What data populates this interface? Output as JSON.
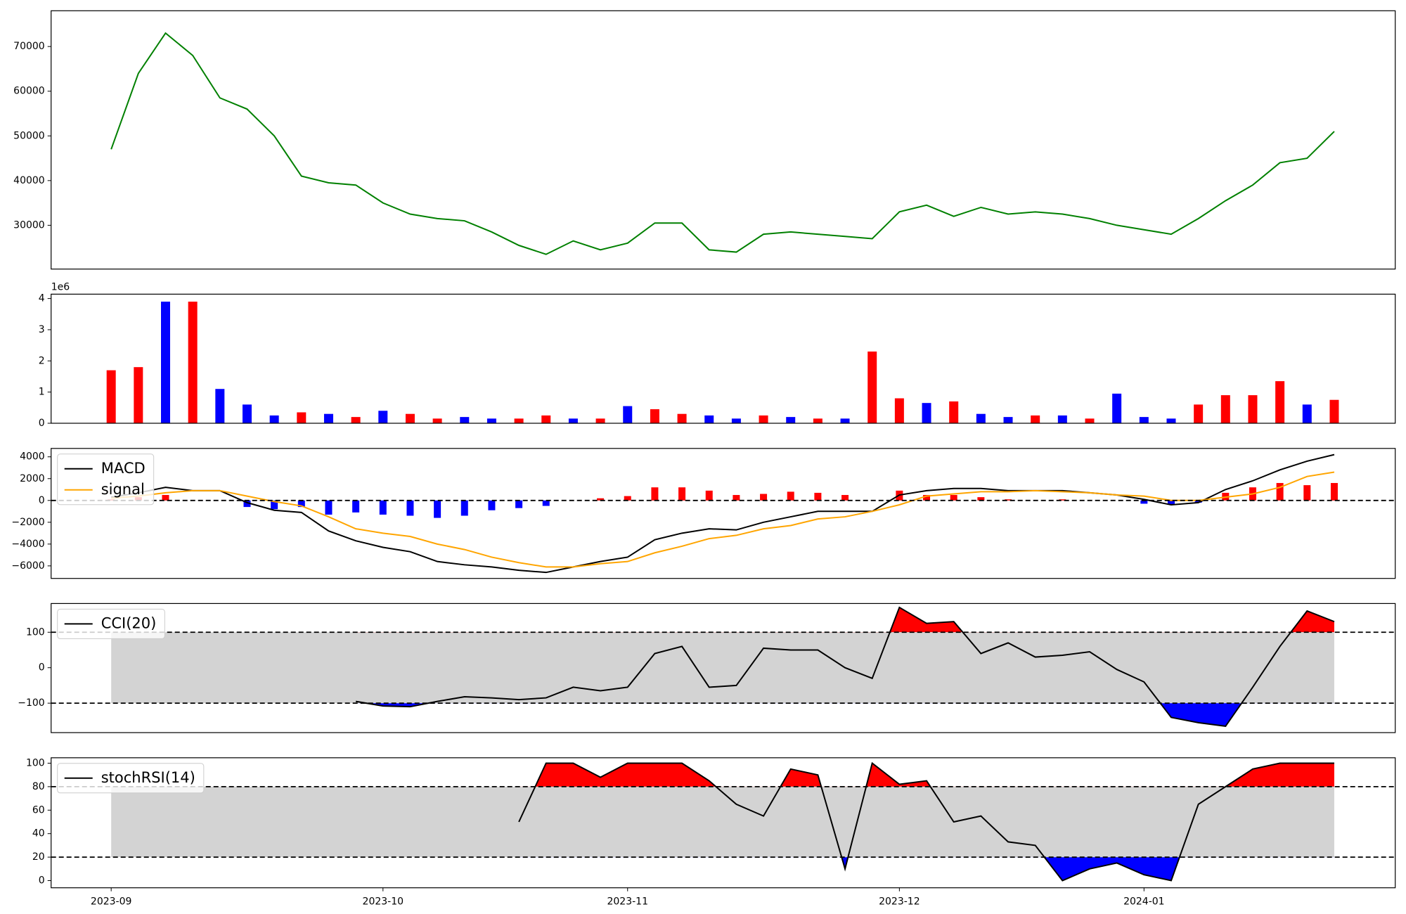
{
  "chart_data": [
    {
      "type": "line",
      "ylim": [
        20200,
        78000
      ],
      "yticks": [
        30000,
        40000,
        50000,
        60000,
        70000
      ],
      "series": [
        {
          "color": "#008000",
          "values": [
            47000,
            64000,
            73000,
            68000,
            58500,
            56000,
            50000,
            41000,
            39500,
            39000,
            35000,
            32500,
            31500,
            31000,
            28500,
            25500,
            23500,
            26500,
            24500,
            26000,
            30500,
            30500,
            24500,
            24000,
            28000,
            28500,
            28000,
            27500,
            27000,
            33000,
            34500,
            32000,
            34000,
            32500,
            33000,
            32500,
            31500,
            30000,
            29000,
            28000,
            31500,
            35500,
            39000,
            44000,
            45000,
            51000
          ]
        }
      ]
    },
    {
      "type": "bar",
      "ylim": [
        0,
        4.14
      ],
      "yticks": [
        0,
        1,
        2,
        3,
        4
      ],
      "offset_label": "1e6",
      "values": [
        1.7,
        1.8,
        3.9,
        3.9,
        1.1,
        0.6,
        0.25,
        0.35,
        0.3,
        0.2,
        0.4,
        0.3,
        0.15,
        0.2,
        0.15,
        0.15,
        0.25,
        0.15,
        0.15,
        0.55,
        0.45,
        0.3,
        0.25,
        0.15,
        0.25,
        0.2,
        0.15,
        0.15,
        2.3,
        0.8,
        0.65,
        0.7,
        0.3,
        0.2,
        0.25,
        0.25,
        0.15,
        0.95,
        0.2,
        0.15,
        0.6,
        0.9,
        0.9,
        1.35,
        0.6,
        0.75
      ],
      "colors": [
        "#ff0000",
        "#ff0000",
        "#0000ff",
        "#ff0000",
        "#0000ff",
        "#0000ff",
        "#0000ff",
        "#ff0000",
        "#0000ff",
        "#ff0000",
        "#0000ff",
        "#ff0000",
        "#ff0000",
        "#0000ff",
        "#0000ff",
        "#ff0000",
        "#ff0000",
        "#0000ff",
        "#ff0000",
        "#0000ff",
        "#ff0000",
        "#ff0000",
        "#0000ff",
        "#0000ff",
        "#ff0000",
        "#0000ff",
        "#ff0000",
        "#0000ff",
        "#ff0000",
        "#ff0000",
        "#0000ff",
        "#ff0000",
        "#0000ff",
        "#0000ff",
        "#ff0000",
        "#0000ff",
        "#ff0000",
        "#0000ff",
        "#0000ff",
        "#0000ff",
        "#ff0000",
        "#ff0000",
        "#ff0000",
        "#ff0000",
        "#0000ff",
        "#ff0000"
      ]
    },
    {
      "type": "line",
      "ylim": [
        -7150,
        4770
      ],
      "yticks": [
        {
          "value": -6000,
          "label": "−6000"
        },
        {
          "value": -4000,
          "label": "−4000"
        },
        {
          "value": -2000,
          "label": "−2000"
        },
        0,
        2000,
        4000
      ],
      "hlines": [
        0
      ],
      "legend": "upper left",
      "series": [
        {
          "name": "MACD",
          "color": "#000000",
          "values": [
            300,
            700,
            1200,
            900,
            900,
            -200,
            -900,
            -1100,
            -2800,
            -3700,
            -4300,
            -4700,
            -5600,
            -5900,
            -6100,
            -6400,
            -6600,
            -6100,
            -5600,
            -5200,
            -3600,
            -3000,
            -2600,
            -2700,
            -2000,
            -1500,
            -1000,
            -1000,
            -1000,
            500,
            900,
            1100,
            1100,
            900,
            900,
            900,
            700,
            500,
            100,
            -400,
            -200,
            1000,
            1800,
            2800,
            3600,
            4200
          ]
        },
        {
          "name": "signal",
          "color": "#ffa500",
          "values": [
            200,
            400,
            700,
            900,
            900,
            400,
            -100,
            -500,
            -1500,
            -2600,
            -3000,
            -3300,
            -4000,
            -4500,
            -5200,
            -5700,
            -6100,
            -6100,
            -5800,
            -5600,
            -4800,
            -4200,
            -3500,
            -3200,
            -2600,
            -2300,
            -1700,
            -1500,
            -1000,
            -400,
            400,
            600,
            800,
            800,
            900,
            800,
            700,
            500,
            400,
            0,
            0,
            300,
            600,
            1200,
            2200,
            2600
          ]
        }
      ],
      "histogram": {
        "up_color": "#ff0000",
        "down_color": "#0000ff",
        "values": [
          100,
          300,
          500,
          0,
          0,
          -600,
          -800,
          -600,
          -1300,
          -1100,
          -1300,
          -1400,
          -1600,
          -1400,
          -900,
          -700,
          -500,
          0,
          200,
          400,
          1200,
          1200,
          900,
          500,
          600,
          800,
          700,
          500,
          0,
          900,
          500,
          500,
          300,
          100,
          0,
          100,
          0,
          0,
          -300,
          -400,
          -200,
          700,
          1200,
          1600,
          1400,
          1600
        ]
      }
    },
    {
      "type": "line",
      "ylim": [
        -183,
        181
      ],
      "yticks": [
        {
          "value": -100,
          "label": "−100"
        },
        0,
        100
      ],
      "thresholds": [
        -100,
        100
      ],
      "band_color": "#d3d3d3",
      "upper_color": "#ff0000",
      "lower_color": "#0000ff",
      "legend": "upper left",
      "series": [
        {
          "name": "CCI(20)",
          "color": "#000000",
          "values": [
            null,
            null,
            null,
            null,
            null,
            null,
            null,
            null,
            null,
            -95,
            -108,
            -110,
            -95,
            -82,
            -85,
            -90,
            -85,
            -55,
            -65,
            -55,
            40,
            60,
            -55,
            -50,
            55,
            50,
            50,
            0,
            -30,
            170,
            125,
            130,
            40,
            70,
            30,
            35,
            45,
            -5,
            -40,
            -140,
            -155,
            -165,
            -55,
            60,
            160,
            130
          ]
        }
      ]
    },
    {
      "type": "line",
      "ylim": [
        -6.1,
        104.6
      ],
      "yticks": [
        0,
        20,
        40,
        60,
        80,
        100
      ],
      "thresholds": [
        20,
        80
      ],
      "band_color": "#d3d3d3",
      "upper_color": "#ff0000",
      "lower_color": "#0000ff",
      "legend": "upper left",
      "series": [
        {
          "name": "stochRSI(14)",
          "color": "#000000",
          "values": [
            null,
            null,
            null,
            null,
            null,
            null,
            null,
            null,
            null,
            null,
            null,
            null,
            null,
            null,
            null,
            50,
            100,
            100,
            88,
            100,
            100,
            100,
            85,
            65,
            55,
            95,
            90,
            10,
            100,
            82,
            85,
            50,
            55,
            33,
            30,
            0,
            10,
            15,
            5,
            0,
            65,
            80,
            95,
            100,
            100,
            100
          ]
        }
      ],
      "categories": [
        "2023-09",
        null,
        null,
        null,
        null,
        null,
        null,
        null,
        null,
        null,
        "2023-10",
        null,
        null,
        null,
        null,
        null,
        null,
        null,
        null,
        "2023-11",
        null,
        null,
        null,
        null,
        null,
        null,
        null,
        null,
        null,
        "2023-12",
        null,
        null,
        null,
        null,
        null,
        null,
        null,
        null,
        "2024-01",
        null,
        null,
        null,
        null,
        null,
        null,
        null
      ]
    }
  ]
}
